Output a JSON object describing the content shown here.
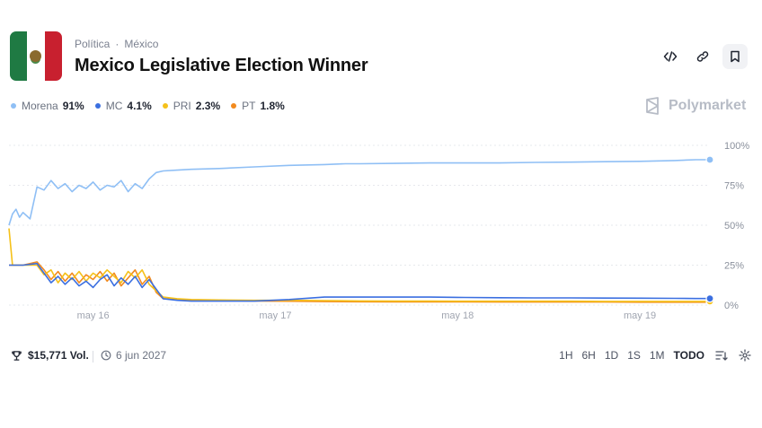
{
  "header": {
    "category": "Política",
    "subcategory": "México",
    "title": "Mexico Legislative Election Winner"
  },
  "toolbar": {
    "embed_icon": "code-icon",
    "link_icon": "link-icon",
    "bookmark_icon": "bookmark-icon"
  },
  "brand": {
    "name": "Polymarket"
  },
  "legend": [
    {
      "name": "Morena",
      "value": "91%",
      "color": "#8fbff5"
    },
    {
      "name": "MC",
      "value": "4.1%",
      "color": "#3b6fe0"
    },
    {
      "name": "PRI",
      "value": "2.3%",
      "color": "#f5c11a"
    },
    {
      "name": "PT",
      "value": "1.8%",
      "color": "#f28a1e"
    }
  ],
  "footer": {
    "volume": "$15,771 Vol.",
    "date": "6 jun 2027",
    "ranges": [
      "1H",
      "6H",
      "1D",
      "1S",
      "1M",
      "TODO"
    ],
    "active_range": "TODO"
  },
  "chart_data": {
    "type": "line",
    "x_ticks": [
      "may 16",
      "may 17",
      "may 18",
      "may 19"
    ],
    "y_ticks": [
      "100%",
      "75%",
      "50%",
      "25%",
      "0%"
    ],
    "ylim": [
      0,
      100
    ],
    "x_range": [
      0,
      100
    ],
    "grid": true,
    "series": [
      {
        "name": "Morena",
        "color": "#8fbff5",
        "x": [
          0,
          0.5,
          1,
          1.5,
          2,
          3,
          4,
          5,
          6,
          7,
          8,
          9,
          10,
          11,
          12,
          13,
          14,
          15,
          16,
          17,
          18,
          19,
          20,
          21,
          22,
          24,
          26,
          30,
          35,
          40,
          45,
          48,
          50,
          55,
          60,
          65,
          70,
          75,
          80,
          85,
          90,
          95,
          98,
          100
        ],
        "y": [
          50,
          57,
          60,
          55,
          58,
          54,
          74,
          72,
          78,
          73,
          76,
          71,
          75,
          73,
          77,
          72,
          75,
          74,
          78,
          71,
          76,
          73,
          79,
          83,
          84,
          84.5,
          85,
          85.5,
          86.5,
          87.5,
          88,
          88.5,
          88.5,
          88.7,
          89,
          89,
          89,
          89.3,
          89.5,
          89.8,
          90,
          90.5,
          91,
          91
        ]
      },
      {
        "name": "MC",
        "color": "#3b6fe0",
        "x": [
          0,
          0.5,
          2,
          4,
          5,
          6,
          7,
          8,
          9,
          10,
          11,
          12,
          13,
          14,
          15,
          16,
          17,
          18,
          19,
          20,
          21,
          22,
          24,
          26,
          30,
          35,
          40,
          45,
          50,
          55,
          60,
          65,
          70,
          75,
          80,
          85,
          90,
          95,
          98,
          100
        ],
        "y": [
          25,
          25,
          25,
          26,
          20,
          14,
          18,
          13,
          17,
          12,
          15,
          11,
          16,
          19,
          12,
          17,
          13,
          18,
          11,
          16,
          10,
          4,
          3,
          2.5,
          2.5,
          2.5,
          3.5,
          5,
          5,
          5,
          5,
          4.8,
          4.6,
          4.5,
          4.5,
          4.4,
          4.3,
          4.2,
          4.1,
          4.1
        ]
      },
      {
        "name": "PRI",
        "color": "#f5c11a",
        "x": [
          0,
          0.5,
          2,
          4,
          5,
          6,
          7,
          8,
          9,
          10,
          11,
          12,
          13,
          14,
          15,
          16,
          17,
          18,
          19,
          20,
          21,
          22,
          24,
          26,
          30,
          35,
          40,
          45,
          50,
          55,
          60,
          65,
          70,
          75,
          80,
          85,
          90,
          95,
          98,
          100
        ],
        "y": [
          48,
          25,
          25,
          25,
          19,
          22,
          14,
          20,
          16,
          21,
          15,
          20,
          17,
          22,
          18,
          14,
          21,
          17,
          22,
          13,
          9,
          5,
          4,
          3.5,
          3.2,
          3,
          3,
          2.8,
          2.6,
          2.5,
          2.5,
          2.4,
          2.4,
          2.4,
          2.4,
          2.3,
          2.3,
          2.3,
          2.3,
          2.3
        ]
      },
      {
        "name": "PT",
        "color": "#f28a1e",
        "x": [
          0,
          0.5,
          2,
          4,
          5,
          6,
          7,
          8,
          9,
          10,
          11,
          12,
          13,
          14,
          15,
          16,
          17,
          18,
          19,
          20,
          21,
          22,
          24,
          26,
          30,
          35,
          40,
          45,
          50,
          55,
          60,
          65,
          70,
          75,
          80,
          85,
          90,
          95,
          98,
          100
        ],
        "y": [
          25,
          25,
          25,
          27,
          22,
          16,
          21,
          15,
          20,
          14,
          19,
          16,
          21,
          15,
          20,
          12,
          17,
          22,
          13,
          18,
          8,
          4,
          3.5,
          3,
          2.8,
          2.6,
          2.4,
          2.2,
          2.1,
          2,
          2,
          2,
          1.9,
          1.9,
          1.9,
          1.9,
          1.8,
          1.8,
          1.8,
          1.8
        ]
      }
    ]
  }
}
